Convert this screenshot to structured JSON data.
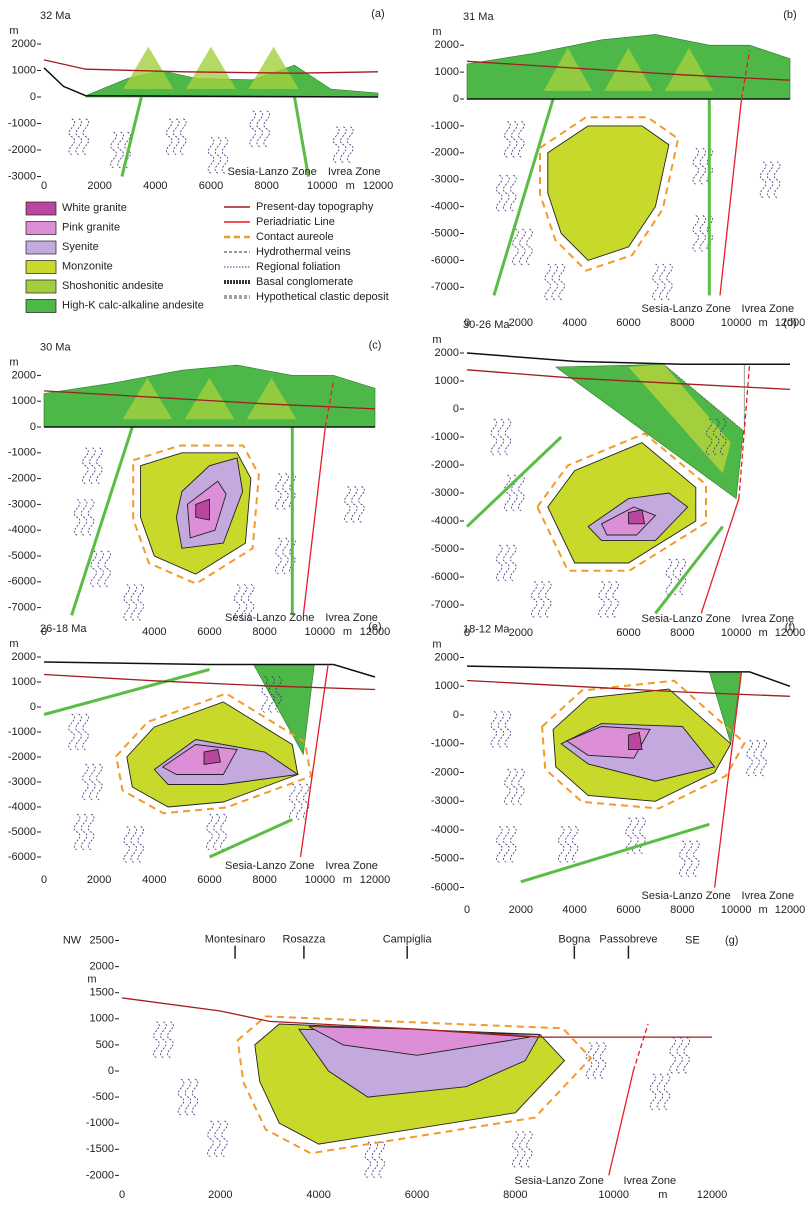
{
  "panels": [
    {
      "label": "(a)",
      "age": "32 Ma",
      "y_unit": "m",
      "x_unit": "m",
      "yticks": [
        "2000",
        "1000",
        "0",
        "-1000",
        "-2000",
        "-3000"
      ],
      "xticks": [
        "0",
        "2000",
        "4000",
        "6000",
        "8000",
        "10000",
        "12000"
      ],
      "zones": [
        "Sesia-Lanzo Zone",
        "Ivrea Zone"
      ]
    },
    {
      "label": "(b)",
      "age": "31 Ma",
      "y_unit": "m",
      "x_unit": "m",
      "yticks": [
        "2000",
        "1000",
        "0",
        "-1000",
        "-2000",
        "-3000",
        "-4000",
        "-5000",
        "-6000",
        "-7000"
      ],
      "xticks": [
        "0",
        "2000",
        "4000",
        "6000",
        "8000",
        "10000",
        "12000"
      ],
      "zones": [
        "Sesia-Lanzo Zone",
        "Ivrea Zone"
      ]
    },
    {
      "label": "(c)",
      "age": "30 Ma",
      "y_unit": "m",
      "x_unit": "m",
      "yticks": [
        "2000",
        "1000",
        "0",
        "-1000",
        "-2000",
        "-3000",
        "-4000",
        "-5000",
        "-6000",
        "-7000"
      ],
      "xticks": [
        "0",
        "4000",
        "6000",
        "8000",
        "10000",
        "12000"
      ],
      "zones": [
        "Sesia-Lanzo Zone",
        "Ivrea Zone"
      ]
    },
    {
      "label": "(d)",
      "age": "30-26 Ma",
      "y_unit": "m",
      "x_unit": "m",
      "yticks": [
        "2000",
        "1000",
        "0",
        "-1000",
        "-2000",
        "-3000",
        "-4000",
        "-5000",
        "-6000",
        "-7000"
      ],
      "xticks": [
        "0",
        "2000",
        "6000",
        "8000",
        "10000",
        "12000"
      ],
      "zones": [
        "Sesia-Lanzo Zone",
        "Ivrea Zone"
      ]
    },
    {
      "label": "(e)",
      "age": "26-18 Ma",
      "y_unit": "m",
      "x_unit": "m",
      "yticks": [
        "2000",
        "1000",
        "0",
        "-1000",
        "-2000",
        "-3000",
        "-4000",
        "-5000",
        "-6000"
      ],
      "xticks": [
        "0",
        "2000",
        "4000",
        "6000",
        "8000",
        "10000",
        "12000"
      ],
      "zones": [
        "Sesia-Lanzo Zone",
        "Ivrea Zone"
      ]
    },
    {
      "label": "(f)",
      "age": "18-12 Ma",
      "y_unit": "m",
      "x_unit": "m",
      "yticks": [
        "2000",
        "1000",
        "0",
        "-1000",
        "-2000",
        "-3000",
        "-4000",
        "-5000",
        "-6000"
      ],
      "xticks": [
        "0",
        "2000",
        "4000",
        "6000",
        "8000",
        "10000",
        "12000"
      ],
      "zones": [
        "Sesia-Lanzo Zone",
        "Ivrea Zone"
      ]
    },
    {
      "label": "(g)",
      "y_unit": "m",
      "x_unit": "m",
      "yticks": [
        "2500",
        "2000",
        "1500",
        "1000",
        "500",
        "0",
        "-500",
        "-1000",
        "-1500",
        "-2000"
      ],
      "xticks": [
        "0",
        "2000",
        "4000",
        "6000",
        "8000",
        "10000",
        "12000"
      ],
      "zones": [
        "Sesia-Lanzo Zone",
        "Ivrea Zone"
      ],
      "directions": [
        "NW",
        "SE"
      ],
      "localities": [
        "Montesinaro",
        "Rosazza",
        "Campiglia",
        "Bogna",
        "Passobreve"
      ]
    }
  ],
  "legend": {
    "units": [
      "White granite",
      "Pink granite",
      "Syenite",
      "Monzonite",
      "Shoshonitic andesite",
      "High-K calc-alkaline andesite"
    ],
    "lines": [
      "Present-day topography",
      "Periadriatic Line",
      "Contact aureole",
      "Hydrothermal veins",
      "Regional foliation",
      "Basal conglomerate",
      "Hypothetical clastic deposit"
    ]
  }
}
